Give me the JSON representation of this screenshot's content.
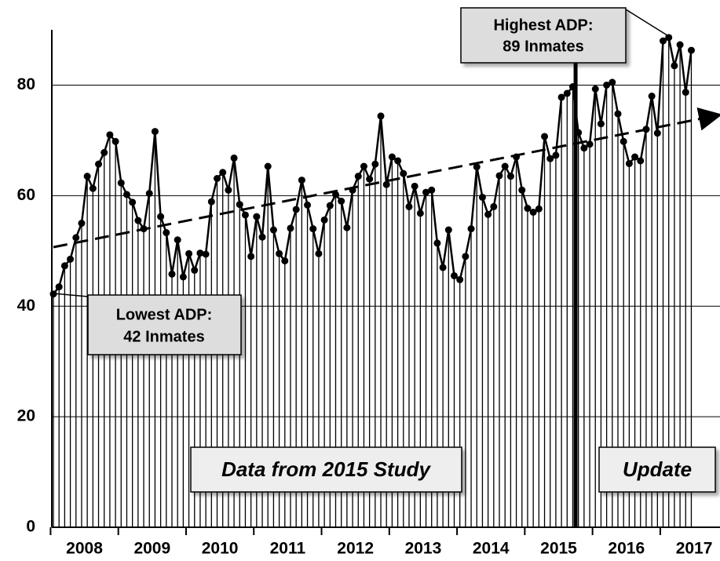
{
  "chart_data": {
    "type": "line",
    "values": [
      42.2,
      43.5,
      47.3,
      48.5,
      52.4,
      55,
      63.5,
      61.3,
      65.7,
      67.8,
      71,
      69.8,
      62.3,
      60.2,
      58.8,
      55.5,
      54,
      60.4,
      71.6,
      56.2,
      53.3,
      45.8,
      52,
      45.3,
      49.5,
      46.5,
      49.6,
      49.4,
      58.9,
      63.1,
      64.2,
      61,
      66.8,
      58.4,
      56.5,
      49,
      56.2,
      52.5,
      65.3,
      53.8,
      49.5,
      48.2,
      54.1,
      57.5,
      62.8,
      58.3,
      54,
      49.5,
      55.6,
      58.2,
      60.2,
      59,
      54.2,
      61,
      63.5,
      65.3,
      63,
      65.7,
      74.4,
      62,
      67,
      66.3,
      64,
      58,
      61.7,
      56.8,
      60.6,
      61,
      51.4,
      47,
      53.8,
      45.5,
      44.8,
      49,
      54,
      65.2,
      59.7,
      56.6,
      58,
      63.6,
      65.3,
      63.5,
      67,
      61,
      57.7,
      57,
      57.6,
      70.7,
      66.7,
      67.3,
      77.8,
      78.5,
      79.7,
      71.4,
      68.6,
      69.3,
      79.3,
      73,
      80,
      80.5,
      74.8,
      69.8,
      65.8,
      67,
      66.3,
      72,
      78,
      71.3,
      88,
      88.6,
      83.5,
      87.3,
      78.7,
      86.3
    ],
    "color": "#000000",
    "ylim": [
      0,
      90
    ],
    "yticks": [
      0,
      20,
      40,
      60,
      80
    ],
    "grid": true,
    "xticks": [
      2008,
      2009,
      2010,
      2011,
      2012,
      2013,
      2014,
      2015,
      2016,
      2017
    ],
    "annotations": [
      "Highest ADP:",
      "89 Inmates",
      "Lowest ADP:",
      "42 Inmates",
      "Data from 2015 Study",
      "Update"
    ]
  }
}
